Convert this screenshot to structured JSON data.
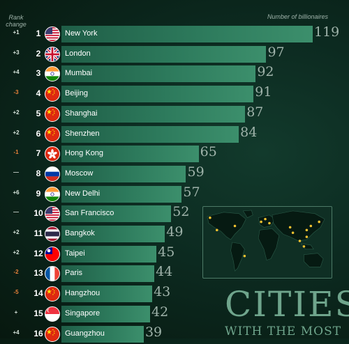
{
  "header": {
    "rank_change_label": "Rank change",
    "metric_label": "Number of billionaires"
  },
  "title": {
    "main": "CITIES",
    "sub": "WITH THE MOST"
  },
  "chart_data": {
    "type": "bar",
    "orientation": "horizontal",
    "xlabel": "Number of billionaires",
    "categories": [
      "New York",
      "London",
      "Mumbai",
      "Beijing",
      "Shanghai",
      "Shenzhen",
      "Hong Kong",
      "Moscow",
      "New Delhi",
      "San Francisco",
      "Bangkok",
      "Taipei",
      "Paris",
      "Hangzhou",
      "Singapore",
      "Guangzhou"
    ],
    "values": [
      119,
      97,
      92,
      91,
      87,
      84,
      65,
      59,
      57,
      52,
      49,
      45,
      44,
      43,
      42,
      39
    ],
    "ranks": [
      1,
      2,
      3,
      4,
      5,
      6,
      7,
      8,
      9,
      10,
      11,
      12,
      13,
      14,
      15,
      16
    ],
    "rank_changes": [
      "+1",
      "+3",
      "+4",
      "-3",
      "+2",
      "+2",
      "-1",
      "—",
      "+6",
      "—",
      "+2",
      "+2",
      "-2",
      "-5",
      "+",
      "+4"
    ],
    "flags": [
      "us",
      "uk",
      "india",
      "china",
      "china",
      "china",
      "hongkong",
      "russia",
      "india",
      "us",
      "thailand",
      "taiwan",
      "france",
      "china",
      "singapore",
      "china"
    ],
    "colors": {
      "bar_start": "#1f5e47",
      "bar_end": "#3c8f6c",
      "down": "#e9823a",
      "value_text": "#9fb3aa"
    }
  },
  "map": {
    "icon": "world-map-icon",
    "marker_color": "#f2c230"
  }
}
